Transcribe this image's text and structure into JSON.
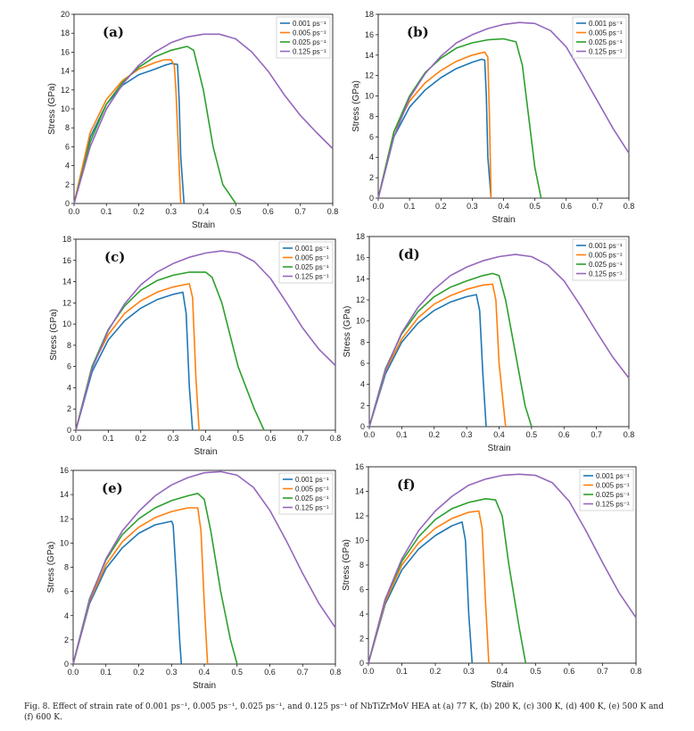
{
  "figure": {
    "caption": "Fig. 8. Effect of strain rate of 0.001 ps⁻¹, 0.005 ps⁻¹, 0.025 ps⁻¹, and 0.125 ps⁻¹ of NbTiZrMoV HEA at (a) 77 K, (b) 200 K, (c) 300 K, (d) 400 K, (e) 500 K and (f) 600 K."
  },
  "colors": {
    "s1": "#1f77b4",
    "s2": "#ff7f0e",
    "s3": "#2ca02c",
    "s4": "#9467bd"
  },
  "chart_data": [
    {
      "type": "line",
      "panel": "(a)",
      "xlabel": "Strain",
      "ylabel": "Stress (GPa)",
      "xlim": [
        0,
        0.8
      ],
      "ylim": [
        0,
        20
      ],
      "xticks": [
        0.0,
        0.1,
        0.2,
        0.3,
        0.4,
        0.5,
        0.6,
        0.7,
        0.8
      ],
      "yticks": [
        0,
        2,
        4,
        6,
        8,
        10,
        12,
        14,
        16,
        18,
        20
      ],
      "legend": "top-right",
      "series": [
        {
          "name": "0.001 ps⁻¹",
          "x": [
            0,
            0.05,
            0.1,
            0.15,
            0.2,
            0.25,
            0.28,
            0.3,
            0.32,
            0.325,
            0.33,
            0.34
          ],
          "y": [
            0,
            7,
            10.5,
            12.5,
            13.6,
            14.2,
            14.6,
            14.8,
            14.7,
            11,
            5,
            0
          ]
        },
        {
          "name": "0.005 ps⁻¹",
          "x": [
            0,
            0.05,
            0.1,
            0.15,
            0.2,
            0.25,
            0.28,
            0.3,
            0.31,
            0.315,
            0.33
          ],
          "y": [
            0,
            7.5,
            11,
            13,
            14.2,
            14.9,
            15.2,
            15.2,
            14.6,
            12,
            0
          ]
        },
        {
          "name": "0.025 ps⁻¹",
          "x": [
            0,
            0.05,
            0.1,
            0.15,
            0.2,
            0.25,
            0.3,
            0.35,
            0.37,
            0.4,
            0.43,
            0.46,
            0.5
          ],
          "y": [
            0,
            6.5,
            10.5,
            12.8,
            14.4,
            15.5,
            16.2,
            16.6,
            16.2,
            12,
            6,
            2,
            0
          ]
        },
        {
          "name": "0.125 ps⁻¹",
          "x": [
            0,
            0.05,
            0.1,
            0.15,
            0.2,
            0.25,
            0.3,
            0.35,
            0.4,
            0.45,
            0.5,
            0.55,
            0.6,
            0.65,
            0.7,
            0.75,
            0.8
          ],
          "y": [
            0,
            6,
            10,
            12.6,
            14.6,
            16,
            17,
            17.6,
            17.9,
            17.9,
            17.4,
            16,
            14,
            11.5,
            9.3,
            7.5,
            5.8
          ]
        }
      ]
    },
    {
      "type": "line",
      "panel": "(b)",
      "xlabel": "Strain",
      "ylabel": "Stress (GPa)",
      "xlim": [
        0,
        0.8
      ],
      "ylim": [
        0,
        18
      ],
      "xticks": [
        0.0,
        0.1,
        0.2,
        0.3,
        0.4,
        0.5,
        0.6,
        0.7,
        0.8
      ],
      "yticks": [
        0,
        2,
        4,
        6,
        8,
        10,
        12,
        14,
        16,
        18
      ],
      "legend": "top-right",
      "series": [
        {
          "name": "0.001 ps⁻¹",
          "x": [
            0,
            0.05,
            0.1,
            0.15,
            0.2,
            0.25,
            0.3,
            0.33,
            0.34,
            0.345,
            0.35,
            0.36
          ],
          "y": [
            0,
            6,
            8.9,
            10.6,
            11.8,
            12.7,
            13.3,
            13.6,
            13.5,
            10,
            4,
            0
          ]
        },
        {
          "name": "0.005 ps⁻¹",
          "x": [
            0,
            0.05,
            0.1,
            0.15,
            0.2,
            0.25,
            0.3,
            0.34,
            0.35,
            0.355,
            0.36
          ],
          "y": [
            0,
            6.5,
            9.5,
            11.3,
            12.5,
            13.4,
            14,
            14.3,
            13.8,
            8,
            0
          ]
        },
        {
          "name": "0.025 ps⁻¹",
          "x": [
            0,
            0.05,
            0.1,
            0.15,
            0.2,
            0.25,
            0.3,
            0.35,
            0.4,
            0.44,
            0.46,
            0.48,
            0.5,
            0.52
          ],
          "y": [
            0,
            6.5,
            10,
            12.3,
            13.7,
            14.7,
            15.2,
            15.5,
            15.6,
            15.3,
            13,
            8,
            3,
            0
          ]
        },
        {
          "name": "0.125 ps⁻¹",
          "x": [
            0,
            0.05,
            0.1,
            0.15,
            0.2,
            0.25,
            0.3,
            0.35,
            0.4,
            0.45,
            0.5,
            0.55,
            0.6,
            0.65,
            0.7,
            0.75,
            0.8
          ],
          "y": [
            0,
            6,
            9.8,
            12.2,
            13.9,
            15.2,
            16,
            16.6,
            17,
            17.2,
            17.1,
            16.4,
            14.8,
            12.2,
            9.5,
            6.8,
            4.4
          ]
        }
      ]
    },
    {
      "type": "line",
      "panel": "(c)",
      "xlabel": "Strain",
      "ylabel": "Stress (GPa)",
      "xlim": [
        0,
        0.8
      ],
      "ylim": [
        0,
        18
      ],
      "xticks": [
        0.0,
        0.1,
        0.2,
        0.3,
        0.4,
        0.5,
        0.6,
        0.7,
        0.8
      ],
      "yticks": [
        0,
        2,
        4,
        6,
        8,
        10,
        12,
        14,
        16,
        18
      ],
      "legend": "top-right",
      "series": [
        {
          "name": "0.001 ps⁻¹",
          "x": [
            0,
            0.05,
            0.1,
            0.15,
            0.2,
            0.25,
            0.3,
            0.33,
            0.34,
            0.35,
            0.36
          ],
          "y": [
            0,
            5.5,
            8.5,
            10.3,
            11.5,
            12.3,
            12.8,
            13,
            11,
            4,
            0
          ]
        },
        {
          "name": "0.005 ps⁻¹",
          "x": [
            0,
            0.05,
            0.1,
            0.15,
            0.2,
            0.25,
            0.3,
            0.35,
            0.36,
            0.37,
            0.38
          ],
          "y": [
            0,
            6,
            9,
            11,
            12.2,
            13,
            13.5,
            13.8,
            12.5,
            5,
            0
          ]
        },
        {
          "name": "0.025 ps⁻¹",
          "x": [
            0,
            0.05,
            0.1,
            0.15,
            0.2,
            0.25,
            0.3,
            0.35,
            0.4,
            0.42,
            0.45,
            0.5,
            0.55,
            0.58
          ],
          "y": [
            0,
            6,
            9.5,
            11.7,
            13.2,
            14.1,
            14.6,
            14.9,
            14.9,
            14.4,
            12,
            6,
            2,
            0
          ]
        },
        {
          "name": "0.125 ps⁻¹",
          "x": [
            0,
            0.05,
            0.1,
            0.15,
            0.2,
            0.25,
            0.3,
            0.35,
            0.4,
            0.45,
            0.5,
            0.55,
            0.6,
            0.65,
            0.7,
            0.75,
            0.8
          ],
          "y": [
            0,
            5.8,
            9.4,
            11.9,
            13.7,
            14.9,
            15.7,
            16.3,
            16.7,
            16.9,
            16.7,
            15.9,
            14.3,
            12,
            9.6,
            7.6,
            6.1
          ]
        }
      ]
    },
    {
      "type": "line",
      "panel": "(d)",
      "xlabel": "Strain",
      "ylabel": "Stress (GPa)",
      "xlim": [
        0,
        0.8
      ],
      "ylim": [
        0,
        18
      ],
      "xticks": [
        0.0,
        0.1,
        0.2,
        0.3,
        0.4,
        0.5,
        0.6,
        0.7,
        0.8
      ],
      "yticks": [
        0,
        2,
        4,
        6,
        8,
        10,
        12,
        14,
        16,
        18
      ],
      "legend": "top-right",
      "series": [
        {
          "name": "0.001 ps⁻¹",
          "x": [
            0,
            0.05,
            0.1,
            0.15,
            0.2,
            0.25,
            0.3,
            0.33,
            0.34,
            0.35,
            0.36
          ],
          "y": [
            0,
            5,
            8,
            9.8,
            11,
            11.8,
            12.3,
            12.5,
            11,
            5,
            0
          ]
        },
        {
          "name": "0.005 ps⁻¹",
          "x": [
            0,
            0.05,
            0.1,
            0.15,
            0.2,
            0.25,
            0.3,
            0.35,
            0.38,
            0.39,
            0.4,
            0.42
          ],
          "y": [
            0,
            5.3,
            8.3,
            10.3,
            11.6,
            12.4,
            13,
            13.4,
            13.5,
            12,
            6,
            0
          ]
        },
        {
          "name": "0.025 ps⁻¹",
          "x": [
            0,
            0.05,
            0.1,
            0.15,
            0.2,
            0.25,
            0.3,
            0.35,
            0.38,
            0.4,
            0.42,
            0.45,
            0.48,
            0.5
          ],
          "y": [
            0,
            5.5,
            8.8,
            10.9,
            12.3,
            13.2,
            13.8,
            14.3,
            14.5,
            14.3,
            12,
            7,
            2,
            0
          ]
        },
        {
          "name": "0.125 ps⁻¹",
          "x": [
            0,
            0.05,
            0.1,
            0.15,
            0.2,
            0.25,
            0.3,
            0.35,
            0.4,
            0.45,
            0.5,
            0.55,
            0.6,
            0.65,
            0.7,
            0.75,
            0.8
          ],
          "y": [
            0,
            5.4,
            8.9,
            11.3,
            13,
            14.3,
            15.1,
            15.7,
            16.1,
            16.3,
            16.1,
            15.3,
            13.8,
            11.5,
            9,
            6.6,
            4.6
          ]
        }
      ]
    },
    {
      "type": "line",
      "panel": "(e)",
      "xlabel": "Strain",
      "ylabel": "Stress (GPa)",
      "xlim": [
        0,
        0.8
      ],
      "ylim": [
        0,
        16
      ],
      "xticks": [
        0.0,
        0.1,
        0.2,
        0.3,
        0.4,
        0.5,
        0.6,
        0.7,
        0.8
      ],
      "yticks": [
        0,
        2,
        4,
        6,
        8,
        10,
        12,
        14,
        16
      ],
      "legend": "top-right",
      "series": [
        {
          "name": "0.001 ps⁻¹",
          "x": [
            0,
            0.05,
            0.1,
            0.15,
            0.2,
            0.25,
            0.3,
            0.305,
            0.315,
            0.325,
            0.33
          ],
          "y": [
            0,
            5,
            7.9,
            9.6,
            10.8,
            11.5,
            11.8,
            11.5,
            7,
            2,
            0
          ]
        },
        {
          "name": "0.005 ps⁻¹",
          "x": [
            0,
            0.05,
            0.1,
            0.15,
            0.2,
            0.25,
            0.3,
            0.35,
            0.38,
            0.39,
            0.4,
            0.41
          ],
          "y": [
            0,
            5.2,
            8.2,
            10.1,
            11.3,
            12.1,
            12.6,
            12.9,
            12.9,
            11,
            5,
            0
          ]
        },
        {
          "name": "0.025 ps⁻¹",
          "x": [
            0,
            0.05,
            0.1,
            0.15,
            0.2,
            0.25,
            0.3,
            0.35,
            0.38,
            0.4,
            0.42,
            0.45,
            0.48,
            0.5
          ],
          "y": [
            0,
            5.4,
            8.6,
            10.7,
            12,
            12.9,
            13.5,
            13.9,
            14.1,
            13.6,
            11,
            6,
            2,
            0
          ]
        },
        {
          "name": "0.125 ps⁻¹",
          "x": [
            0,
            0.05,
            0.1,
            0.15,
            0.2,
            0.25,
            0.3,
            0.35,
            0.4,
            0.45,
            0.5,
            0.55,
            0.6,
            0.65,
            0.7,
            0.75,
            0.8
          ],
          "y": [
            0,
            5.3,
            8.7,
            11,
            12.6,
            13.9,
            14.8,
            15.4,
            15.8,
            15.9,
            15.6,
            14.6,
            12.7,
            10.2,
            7.5,
            5,
            3
          ]
        }
      ]
    },
    {
      "type": "line",
      "panel": "(f)",
      "xlabel": "Strain",
      "ylabel": "Stress (GPa)",
      "xlim": [
        0,
        0.8
      ],
      "ylim": [
        0,
        16
      ],
      "xticks": [
        0.0,
        0.1,
        0.2,
        0.3,
        0.4,
        0.5,
        0.6,
        0.7,
        0.8
      ],
      "yticks": [
        0,
        2,
        4,
        6,
        8,
        10,
        12,
        14,
        16
      ],
      "legend": "top-right",
      "series": [
        {
          "name": "0.001 ps⁻¹",
          "x": [
            0,
            0.05,
            0.1,
            0.15,
            0.2,
            0.25,
            0.28,
            0.29,
            0.3,
            0.31
          ],
          "y": [
            0,
            4.8,
            7.6,
            9.3,
            10.4,
            11.2,
            11.5,
            10,
            4,
            0
          ]
        },
        {
          "name": "0.005 ps⁻¹",
          "x": [
            0,
            0.05,
            0.1,
            0.15,
            0.2,
            0.25,
            0.3,
            0.33,
            0.34,
            0.35,
            0.36
          ],
          "y": [
            0,
            5,
            8,
            9.8,
            11,
            11.8,
            12.3,
            12.4,
            11,
            5,
            0
          ]
        },
        {
          "name": "0.025 ps⁻¹",
          "x": [
            0,
            0.05,
            0.1,
            0.15,
            0.2,
            0.25,
            0.3,
            0.35,
            0.38,
            0.4,
            0.42,
            0.45,
            0.47
          ],
          "y": [
            0,
            5.2,
            8.3,
            10.3,
            11.7,
            12.6,
            13.1,
            13.4,
            13.3,
            12,
            8,
            3,
            0
          ]
        },
        {
          "name": "0.125 ps⁻¹",
          "x": [
            0,
            0.05,
            0.1,
            0.15,
            0.2,
            0.25,
            0.3,
            0.35,
            0.4,
            0.45,
            0.5,
            0.55,
            0.6,
            0.65,
            0.7,
            0.75,
            0.8
          ],
          "y": [
            0,
            5.2,
            8.5,
            10.8,
            12.4,
            13.6,
            14.5,
            15,
            15.3,
            15.4,
            15.3,
            14.7,
            13.2,
            10.8,
            8.2,
            5.7,
            3.7
          ]
        }
      ]
    }
  ]
}
